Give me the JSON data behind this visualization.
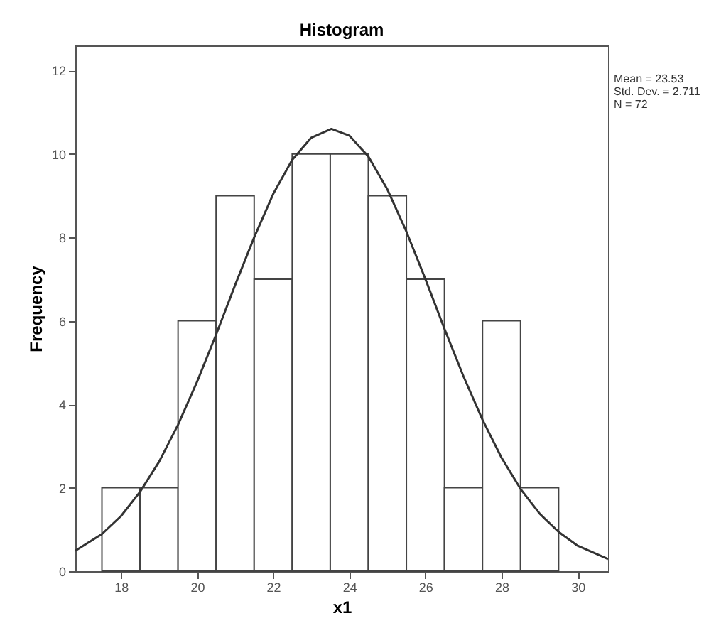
{
  "chart_data": {
    "type": "histogram",
    "title": "Histogram",
    "xlabel": "x1",
    "ylabel": "Frequency",
    "bins": [
      17.5,
      18.5,
      19.5,
      20.5,
      21.5,
      22.5,
      23.5,
      24.5,
      25.5,
      26.5,
      27.5,
      28.5,
      29.5
    ],
    "values": [
      2,
      2,
      6,
      9,
      7,
      10,
      10,
      9,
      7,
      2,
      6,
      2
    ],
    "color": "#ffffff",
    "series": [
      {
        "type": "line",
        "color": "#333333",
        "x": [
          16.8,
          17.5,
          18,
          18.5,
          19,
          19.5,
          20,
          20.5,
          21,
          21.5,
          22,
          22.5,
          23,
          23.53,
          24,
          24.5,
          25,
          25.5,
          26,
          26.5,
          27,
          27.5,
          28,
          28.5,
          29,
          29.5,
          30,
          30.8
        ],
        "values": [
          0.49,
          0.89,
          1.32,
          1.9,
          2.62,
          3.51,
          4.54,
          5.67,
          6.86,
          8.0,
          9.04,
          9.86,
          10.39,
          10.6,
          10.44,
          9.94,
          9.15,
          8.14,
          7.0,
          5.81,
          4.67,
          3.63,
          2.72,
          1.97,
          1.38,
          0.94,
          0.61,
          0.29
        ]
      }
    ],
    "xlim": [
      16.8,
      30.8
    ],
    "xticks": [
      18,
      20,
      22,
      24,
      26,
      28,
      30
    ],
    "ylim": [
      0,
      12.6
    ],
    "yticks": [
      0,
      2,
      4,
      6,
      8,
      10,
      12
    ],
    "grid": false,
    "annotations": [
      "Mean = 23.53",
      "Std. Dev. = 2.711",
      "N = 72"
    ]
  }
}
